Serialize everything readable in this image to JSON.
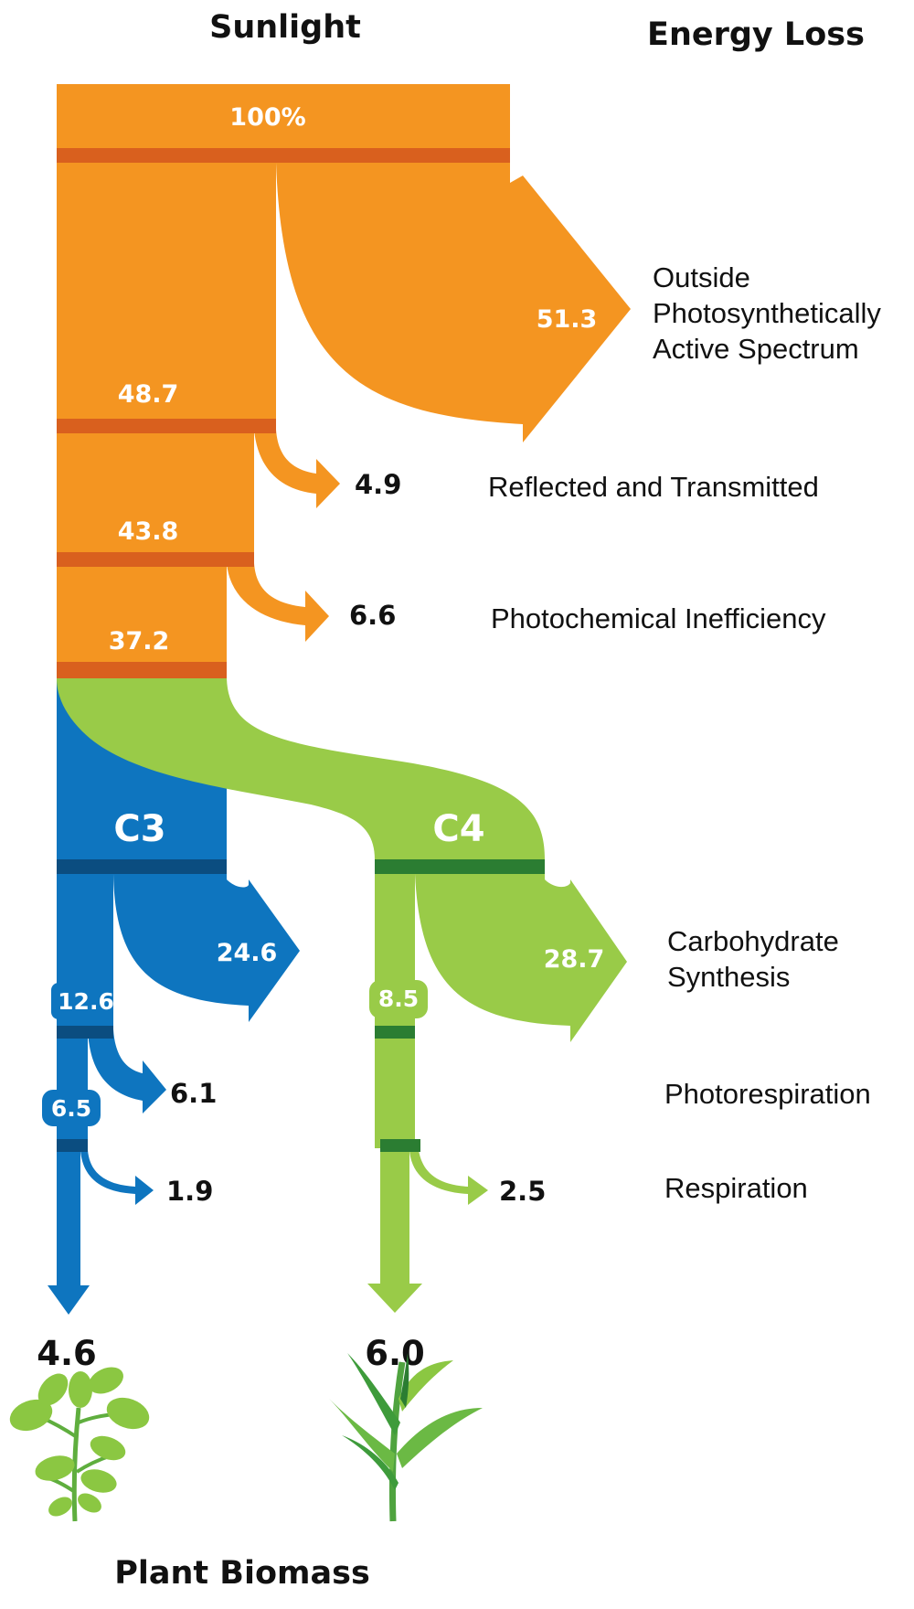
{
  "headers": {
    "sunlight": "Sunlight",
    "energy_loss": "Energy Loss",
    "plant_biomass": "Plant Biomass"
  },
  "flow": {
    "input": "100%",
    "stage1_remaining": "48.7",
    "stage2_remaining": "43.8",
    "stage3_remaining": "37.2",
    "c3_label": "C3",
    "c4_label": "C4",
    "c3_after_carb": "12.6",
    "c3_after_photoresp": "6.5",
    "c4_after_carb": "8.5"
  },
  "losses": {
    "outside_spectrum": {
      "value": "51.3",
      "label_lines": [
        "Outside",
        "Photosynthetically",
        "Active Spectrum"
      ]
    },
    "reflected": {
      "value": "4.9",
      "label": "Reflected and Transmitted"
    },
    "photochemical": {
      "value": "6.6",
      "label": "Photochemical Inefficiency"
    },
    "carbohydrate": {
      "c3_value": "24.6",
      "c4_value": "28.7",
      "label_lines": [
        "Carbohydrate",
        "Synthesis"
      ]
    },
    "photorespiration": {
      "c3_value": "6.1",
      "label": "Photorespiration"
    },
    "respiration": {
      "c3_value": "1.9",
      "c4_value": "2.5",
      "label": "Respiration"
    }
  },
  "outputs": {
    "c3_biomass": "4.6",
    "c4_biomass": "6.0"
  },
  "colors": {
    "orange": "#F49521",
    "orange_band": "#D9601E",
    "blue": "#0E75BF",
    "blue_band": "#0B4D80",
    "green": "#99CB48",
    "green_band": "#2B7D32",
    "dark_green": "#3E9B3B",
    "leaf_green": "#8BC742"
  },
  "icons": {
    "c3_plant": "c3-plant-icon",
    "c4_plant": "c4-plant-icon"
  }
}
